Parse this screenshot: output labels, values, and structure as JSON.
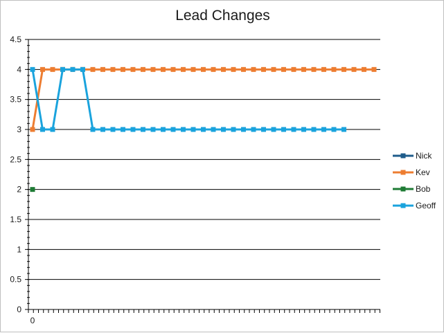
{
  "chart_data": {
    "type": "line",
    "title": "Lead Changes",
    "xlabel": "",
    "ylabel": "",
    "ylim": [
      0,
      4.5
    ],
    "y_ticks": [
      0,
      0.5,
      1,
      1.5,
      2,
      2.5,
      3,
      3.5,
      4,
      4.5
    ],
    "x_range": [
      0,
      34
    ],
    "x_tick_labels": [
      {
        "x": 0,
        "label": "0"
      }
    ],
    "grid": "horizontal",
    "legend_position": "right",
    "series": [
      {
        "name": "Nick",
        "color": "#1f5c8b",
        "values": []
      },
      {
        "name": "Kev",
        "color": "#ed7d31",
        "values": [
          3,
          4,
          4,
          4,
          4,
          4,
          4,
          4,
          4,
          4,
          4,
          4,
          4,
          4,
          4,
          4,
          4,
          4,
          4,
          4,
          4,
          4,
          4,
          4,
          4,
          4,
          4,
          4,
          4,
          4,
          4,
          4,
          4,
          4,
          4
        ]
      },
      {
        "name": "Bob",
        "color": "#1e7b34",
        "values": [
          2
        ]
      },
      {
        "name": "Geoff",
        "color": "#1aa3dd",
        "values": [
          4,
          3,
          3,
          4,
          4,
          4,
          3,
          3,
          3,
          3,
          3,
          3,
          3,
          3,
          3,
          3,
          3,
          3,
          3,
          3,
          3,
          3,
          3,
          3,
          3,
          3,
          3,
          3,
          3,
          3,
          3,
          3
        ]
      }
    ]
  }
}
